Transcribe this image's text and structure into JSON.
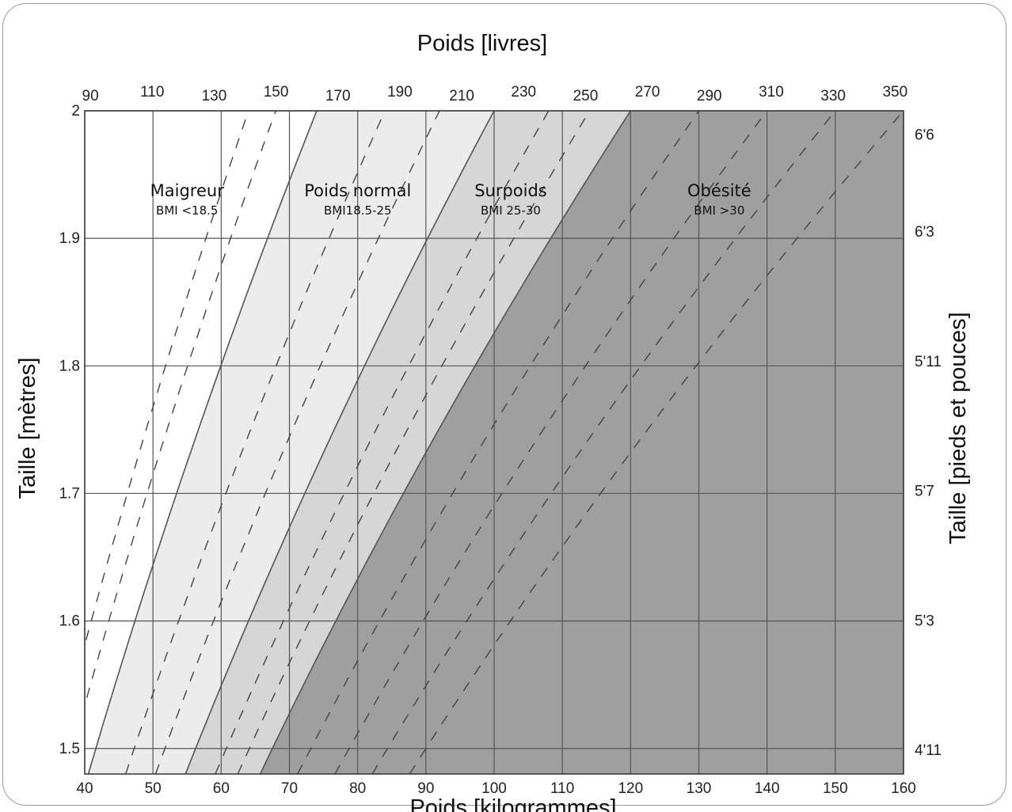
{
  "chart_data": {
    "type": "area",
    "title": "Poids [livres]",
    "xlabel": "Poids [kilogrammes]",
    "ylabel": "Taille [mètres]",
    "ylabel_right": "Taille [pieds et pouces]",
    "xlim": [
      40,
      160
    ],
    "ylim": [
      1.48,
      2.0
    ],
    "x_ticks": [
      40,
      50,
      60,
      70,
      80,
      90,
      100,
      110,
      120,
      130,
      140,
      150,
      160
    ],
    "x_tick_labels": [
      "40",
      "50",
      "60",
      "70",
      "80",
      "90",
      "100",
      "110",
      "120",
      "130",
      "140",
      "150",
      "160"
    ],
    "y_ticks": [
      1.5,
      1.6,
      1.7,
      1.8,
      1.9,
      2.0
    ],
    "y_tick_labels": [
      "1.5",
      "1.6",
      "1.7",
      "1.8",
      "1.9",
      "2"
    ],
    "top_ticks": [
      {
        "lb": 90,
        "label": "90"
      },
      {
        "lb": 110,
        "label": "110"
      },
      {
        "lb": 130,
        "label": "130"
      },
      {
        "lb": 150,
        "label": "150"
      },
      {
        "lb": 170,
        "label": "170"
      },
      {
        "lb": 190,
        "label": "190"
      },
      {
        "lb": 210,
        "label": "210"
      },
      {
        "lb": 230,
        "label": "230"
      },
      {
        "lb": 250,
        "label": "250"
      },
      {
        "lb": 270,
        "label": "270"
      },
      {
        "lb": 290,
        "label": "290"
      },
      {
        "lb": 310,
        "label": "310"
      },
      {
        "lb": 330,
        "label": "330"
      },
      {
        "lb": 350,
        "label": "350"
      }
    ],
    "right_ticks": [
      {
        "in": 78,
        "label": "6'6"
      },
      {
        "in": 75,
        "label": "6'3"
      },
      {
        "in": 71,
        "label": "5'11"
      },
      {
        "in": 67,
        "label": "5'7"
      },
      {
        "in": 63,
        "label": "5'3"
      },
      {
        "in": 59,
        "label": "4'11"
      }
    ],
    "zones": [
      {
        "name": "Maigreur",
        "range_label": "BMI <18.5",
        "bmi_min": 0,
        "bmi_max": 18.5,
        "color": "#ffffff"
      },
      {
        "name": "Poids normal",
        "range_label": "BMI18.5-25",
        "bmi_min": 18.5,
        "bmi_max": 25,
        "color": "#ececec"
      },
      {
        "name": "Surpoids",
        "range_label": "BMI 25-30",
        "bmi_min": 25,
        "bmi_max": 30,
        "color": "#d6d6d6"
      },
      {
        "name": "Obésité",
        "range_label": "BMI >30",
        "bmi_min": 30,
        "bmi_max": 100,
        "color": "#9f9f9f"
      }
    ],
    "dashed_bmi_lines": [
      16,
      17,
      21,
      23,
      27,
      28.5,
      32.5,
      35,
      37.5,
      40
    ],
    "solid_bmi_lines": [
      18.5,
      25,
      30
    ],
    "grid": true,
    "legend": "none"
  }
}
